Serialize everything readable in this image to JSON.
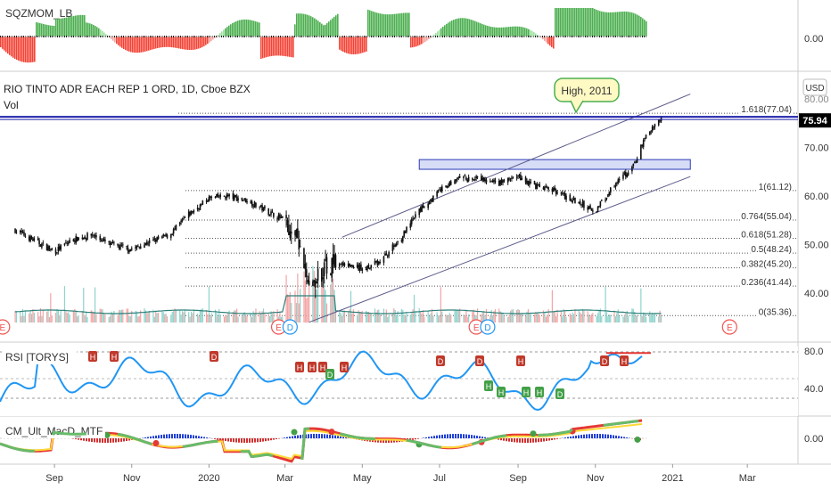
{
  "colors": {
    "up": "#26a69a",
    "down": "#ef5350",
    "blue_line": "#1e22aa",
    "rsi_line": "#2196f3",
    "channel": "#5b5b8a",
    "price_badge_bg": "#000000",
    "axis_text": "#333333",
    "pane_border": "#cccccc",
    "sqz_up": "#4caf50",
    "sqz_down": "#f44336",
    "callout_bg": "#fff9c4",
    "callout_border": "#4caf50"
  },
  "panes": {
    "sqz": {
      "label": "SQZMOM_LB",
      "axis_ticks": [
        "0.00"
      ]
    },
    "main": {
      "title": "RIO TINTO ADR EACH REP 1 ORD, 1D, Cboe BZX",
      "vol_label": "Vol",
      "currency": "USD",
      "last_price": "75.94",
      "axis_ticks": [
        "80.00",
        "70.00",
        "60.00",
        "50.00",
        "40.00"
      ],
      "callout": "High, 2011",
      "fib_levels": [
        {
          "label": "1.618(77.04)",
          "value": 77.04
        },
        {
          "label": "1(61.12)",
          "value": 61.12
        },
        {
          "label": "0.764(55.04)",
          "value": 55.04
        },
        {
          "label": "0.618(51.28)",
          "value": 51.28
        },
        {
          "label": "0.5(48.24)",
          "value": 48.24
        },
        {
          "label": "0.382(45.20)",
          "value": 45.2
        },
        {
          "label": "0.236(41.44)",
          "value": 41.44
        },
        {
          "label": "0(35.36)",
          "value": 35.36
        }
      ],
      "events": [
        "E",
        "E",
        "D",
        "E",
        "D",
        "E"
      ]
    },
    "rsi": {
      "label": "RSI [TORYS]",
      "axis_ticks": [
        "80.0",
        "40.0"
      ]
    },
    "macd": {
      "label": "CM_Ult_MacD_MTF",
      "axis_ticks": [
        "0.00"
      ]
    }
  },
  "time_axis": [
    "Sep",
    "Nov",
    "2020",
    "Mar",
    "May",
    "Jul",
    "Sep",
    "Nov",
    "2021",
    "Mar"
  ],
  "chart_data": {
    "type": "candlestick",
    "symbol": "RIO TINTO ADR EACH REP 1 ORD",
    "interval": "1D",
    "ylim": [
      30,
      83
    ],
    "x": [
      "2019-08-01",
      "2019-08-15",
      "2019-09-01",
      "2019-09-15",
      "2019-10-01",
      "2019-10-15",
      "2019-11-01",
      "2019-11-15",
      "2019-12-01",
      "2019-12-15",
      "2020-01-01",
      "2020-01-15",
      "2020-02-01",
      "2020-02-15",
      "2020-03-01",
      "2020-03-10",
      "2020-03-20",
      "2020-04-01",
      "2020-04-15",
      "2020-05-01",
      "2020-05-15",
      "2020-06-01",
      "2020-06-15",
      "2020-07-01",
      "2020-07-15",
      "2020-08-01",
      "2020-08-15",
      "2020-09-01",
      "2020-09-15",
      "2020-10-01",
      "2020-10-15",
      "2020-11-01",
      "2020-11-15",
      "2020-12-01",
      "2020-12-10",
      "2020-12-23"
    ],
    "close": [
      53,
      51,
      48.5,
      51,
      52,
      50,
      49,
      50.5,
      52,
      56,
      59.5,
      60,
      59,
      57,
      55,
      51.5,
      40,
      45.5,
      46,
      45,
      46.5,
      51.5,
      57,
      61,
      63.5,
      63.5,
      62.5,
      64,
      62,
      61,
      59,
      57,
      62,
      66,
      72,
      75.94
    ],
    "annotations": [
      {
        "text": "High, 2011",
        "value": 77.04
      }
    ],
    "channel": {
      "upper": [
        [
          "2020-04-15",
          51.5
        ],
        [
          "2021-01-15",
          81
        ]
      ],
      "lower": [
        [
          "2020-03-20",
          34
        ],
        [
          "2021-01-15",
          64
        ]
      ]
    },
    "zone": {
      "from": "2020-06-15",
      "to": "2021-01-15",
      "low": 65.5,
      "high": 67.5
    }
  }
}
